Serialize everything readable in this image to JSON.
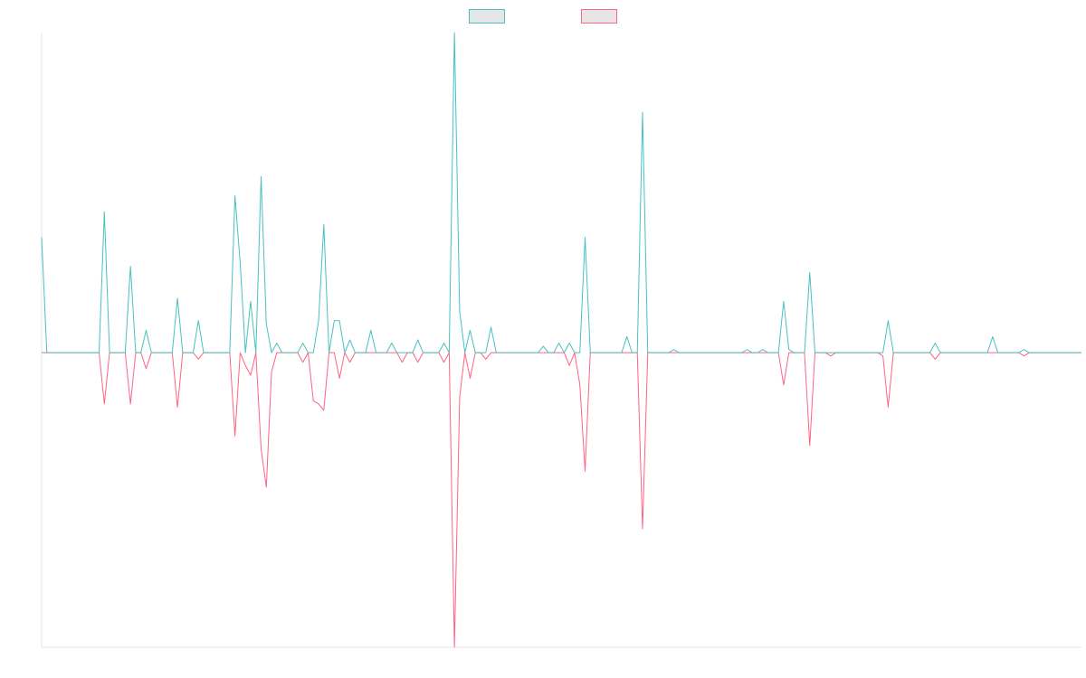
{
  "chart_data": {
    "type": "line",
    "ylim": [
      -92,
      100
    ],
    "legend": "top",
    "series": [
      {
        "color": "#4bc0c0",
        "values": [
          36,
          0,
          0,
          0,
          0,
          0,
          0,
          0,
          0,
          0,
          0,
          0,
          44,
          0,
          0,
          0,
          0,
          27,
          0,
          0,
          7,
          0,
          0,
          0,
          0,
          0,
          17,
          0,
          0,
          0,
          10,
          0,
          0,
          0,
          0,
          0,
          0,
          49,
          28,
          0,
          16,
          0,
          55,
          9,
          0,
          3,
          0,
          0,
          0,
          0,
          3,
          0,
          0,
          10,
          40,
          0,
          10,
          10,
          0,
          4,
          0,
          0,
          0,
          7,
          0,
          0,
          0,
          3,
          0,
          0,
          0,
          0,
          4,
          0,
          0,
          0,
          0,
          3,
          0,
          100,
          13,
          0,
          7,
          0,
          0,
          0,
          8,
          0,
          0,
          0,
          0,
          0,
          0,
          0,
          0,
          0,
          2,
          0,
          0,
          3,
          0,
          3,
          0,
          0,
          36,
          0,
          0,
          0,
          0,
          0,
          0,
          0,
          5,
          0,
          0,
          75,
          0,
          0,
          0,
          0,
          0,
          1,
          0,
          0,
          0,
          0,
          0,
          0,
          0,
          0,
          0,
          0,
          0,
          0,
          0,
          1,
          0,
          0,
          1,
          0,
          0,
          0,
          16,
          1,
          0,
          0,
          0,
          25,
          0,
          0,
          0,
          0,
          0,
          0,
          0,
          0,
          0,
          0,
          0,
          0,
          0,
          0,
          10,
          0,
          0,
          0,
          0,
          0,
          0,
          0,
          0,
          3,
          0,
          0,
          0,
          0,
          0,
          0,
          0,
          0,
          0,
          0,
          5,
          0,
          0,
          0,
          0,
          0,
          1,
          0,
          0,
          0,
          0,
          0,
          0,
          0,
          0,
          0,
          0,
          0
        ]
      },
      {
        "color": "#ff6384",
        "values": [
          0,
          0,
          0,
          0,
          0,
          0,
          0,
          0,
          0,
          0,
          0,
          0,
          -16,
          0,
          0,
          0,
          0,
          -16,
          0,
          0,
          -5,
          0,
          0,
          0,
          0,
          0,
          -17,
          0,
          0,
          0,
          -2,
          0,
          0,
          0,
          0,
          0,
          0,
          -26,
          0,
          -4,
          -7,
          0,
          -30,
          -42,
          -6,
          0,
          0,
          0,
          0,
          0,
          -3,
          0,
          -15,
          -16,
          -18,
          0,
          0,
          -8,
          0,
          -3,
          0,
          0,
          0,
          0,
          0,
          0,
          0,
          0,
          0,
          -3,
          0,
          0,
          -3,
          0,
          0,
          0,
          0,
          -3,
          0,
          -92,
          -14,
          0,
          -8,
          0,
          0,
          -2,
          0,
          0,
          0,
          0,
          0,
          0,
          0,
          0,
          0,
          0,
          0,
          0,
          0,
          0,
          0,
          -4,
          0,
          -10,
          -37,
          0,
          0,
          0,
          0,
          0,
          0,
          0,
          0,
          0,
          0,
          -55,
          0,
          0,
          0,
          0,
          0,
          0,
          0,
          0,
          0,
          0,
          0,
          0,
          0,
          0,
          0,
          0,
          0,
          0,
          0,
          0,
          0,
          0,
          0,
          0,
          0,
          0,
          -10,
          0,
          0,
          0,
          0,
          -29,
          0,
          0,
          0,
          -1,
          0,
          0,
          0,
          0,
          0,
          0,
          0,
          0,
          0,
          -1,
          -17,
          0,
          0,
          0,
          0,
          0,
          0,
          0,
          0,
          -2,
          0,
          0,
          0,
          0,
          0,
          0,
          0,
          0,
          0,
          0,
          0,
          0,
          0,
          0,
          0,
          0,
          -1,
          0,
          0,
          0,
          0,
          0,
          0,
          0,
          0,
          0,
          0,
          0
        ]
      }
    ]
  }
}
